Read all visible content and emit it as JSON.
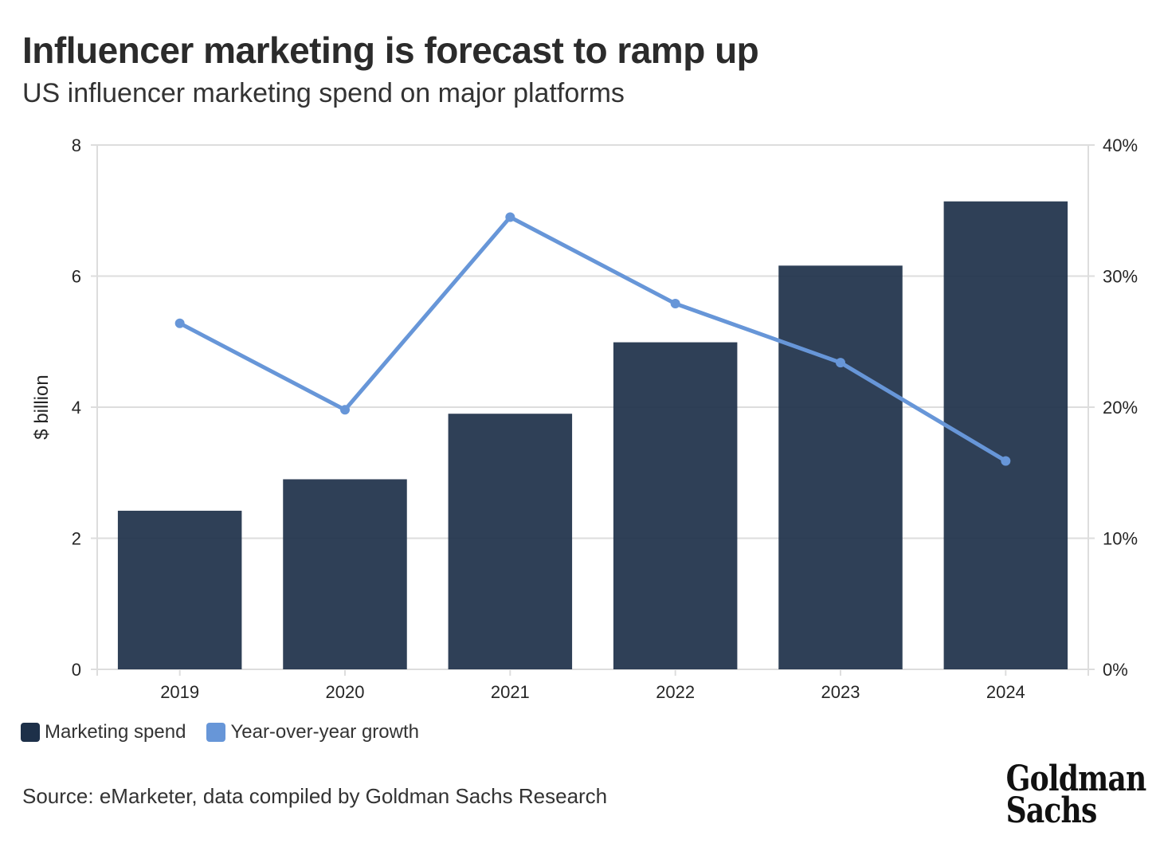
{
  "title": "Influencer marketing is forecast to ramp up",
  "subtitle": "US influencer marketing spend on major platforms",
  "legend": {
    "spend_label": "Marketing spend",
    "growth_label": "Year-over-year growth"
  },
  "source": "Source: eMarketer, data compiled by Goldman Sachs Research",
  "logo": {
    "line1": "Goldman",
    "line2": "Sachs"
  },
  "colors": {
    "bar": "#1d3049",
    "line": "#6796d8",
    "grid": "#dddddd"
  },
  "chart_data": {
    "type": "bar",
    "categories": [
      "2019",
      "2020",
      "2021",
      "2022",
      "2023",
      "2024"
    ],
    "series": [
      {
        "name": "Marketing spend",
        "type": "bar",
        "axis": "left",
        "values": [
          2.42,
          2.9,
          3.9,
          4.99,
          6.16,
          7.14
        ]
      },
      {
        "name": "Year-over-year growth",
        "type": "line",
        "axis": "right",
        "values": [
          26.4,
          19.8,
          34.5,
          27.9,
          23.4,
          15.9
        ]
      }
    ],
    "ylabel": "$ billion",
    "ylim": [
      0,
      8
    ],
    "yticks": [
      "0",
      "2",
      "4",
      "6",
      "8"
    ],
    "y2lim": [
      0,
      40
    ],
    "y2ticks": [
      "0%",
      "10%",
      "20%",
      "30%",
      "40%"
    ],
    "grid": true,
    "legend_position": "bottom-left"
  }
}
